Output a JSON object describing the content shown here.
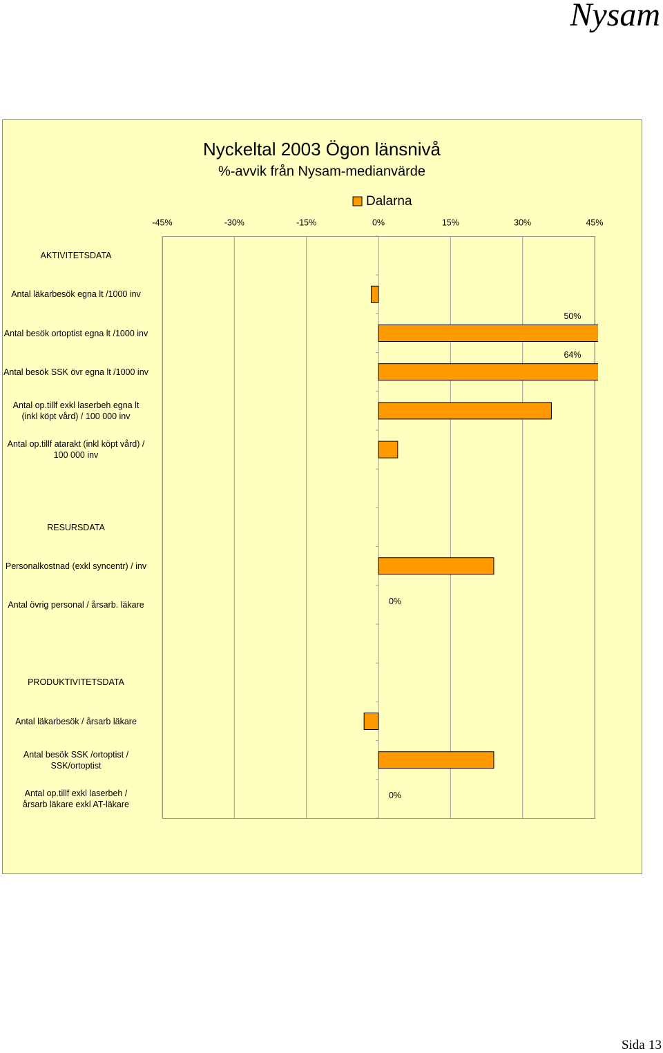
{
  "page": {
    "header": "Nysam",
    "footer": "Sida",
    "page_number": "13"
  },
  "chart_data": {
    "type": "hbar",
    "title": "Nyckeltal 2003  Ögon länsnivå",
    "subtitle": "%-avvik från Nysam-medianvärde",
    "categories": [
      "AKTIVITETSDATA",
      "Antal läkarbesök egna lt /1000 inv",
      "Antal besök ortoptist egna lt /1000 inv",
      "Antal besök SSK övr egna lt /1000 inv",
      "Antal op.tillf  exkl laserbeh egna lt\n(inkl köpt vård) / 100 000 inv",
      "Antal op.tillf atarakt (inkl köpt vård) /\n100 000 inv",
      null,
      "RESURSDATA",
      "Personalkostnad (exkl syncentr) / inv",
      "Antal övrig personal / årsarb. läkare",
      null,
      "PRODUKTIVITETSDATA",
      "Antal läkarbesök / årsarb läkare",
      "Antal besök SSK /ortoptist /\nSSK/ortoptist",
      "Antal op.tillf exkl laserbeh /\nårsarb läkare exkl AT-läkare"
    ],
    "series": [
      {
        "name": "Dalarna",
        "color": "#ff9900",
        "values": [
          null,
          -1.5,
          50,
          64,
          36,
          4,
          null,
          null,
          24,
          0,
          null,
          null,
          -3,
          24,
          0
        ],
        "value_labels": [
          null,
          null,
          "50%",
          "64%",
          null,
          null,
          null,
          null,
          null,
          "0%",
          null,
          null,
          null,
          null,
          "0%"
        ]
      }
    ],
    "xlim": [
      -45,
      45
    ],
    "xticks": [
      {
        "value": -45,
        "label": "-45%"
      },
      {
        "value": -30,
        "label": "-30%"
      },
      {
        "value": -15,
        "label": "-15%"
      },
      {
        "value": 0,
        "label": "0%"
      },
      {
        "value": 15,
        "label": "15%"
      },
      {
        "value": 30,
        "label": "30%"
      },
      {
        "value": 45,
        "label": "45%"
      }
    ],
    "grid": true,
    "legend": "top"
  }
}
